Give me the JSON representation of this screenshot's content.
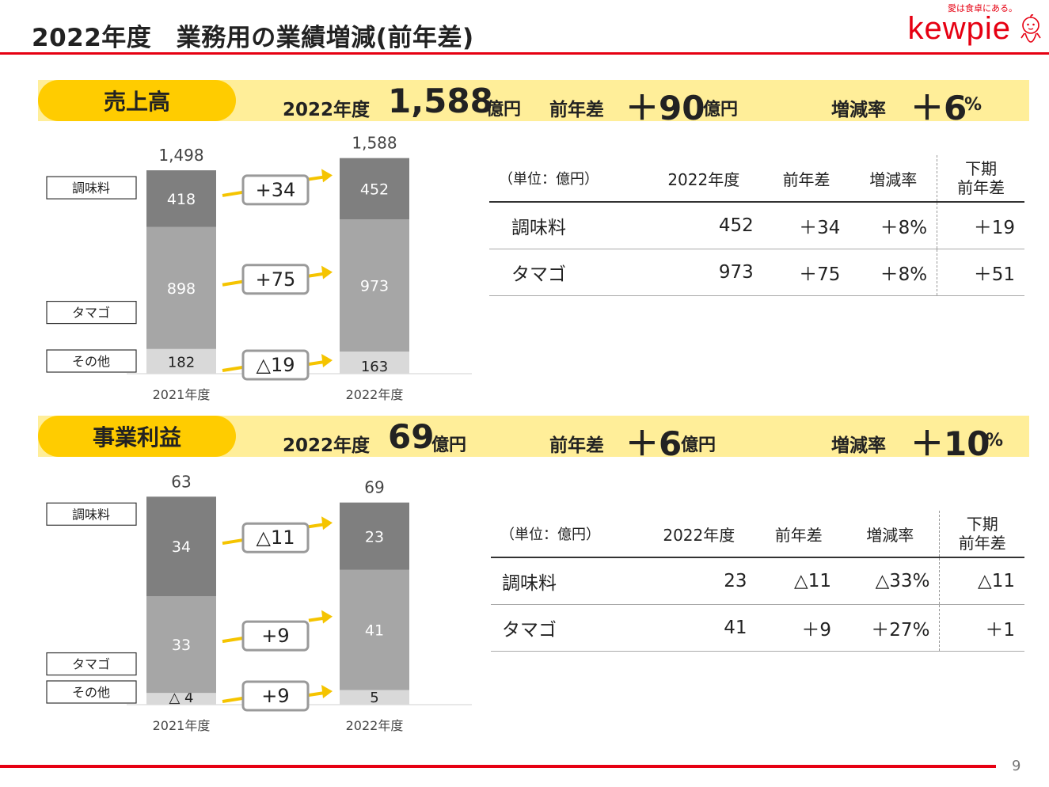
{
  "header": {
    "title": "2022年度　業務用の業績増減(前年差)",
    "logo_tagline": "愛は食卓にある。",
    "logo_text": "kewpie"
  },
  "colors": {
    "accent_red": "#e60012",
    "pill_yellow": "#ffcc00",
    "banner_yellow": "#ffee99",
    "arrow_yellow": "#f5c400",
    "bar_dark": "#7f7f7f",
    "bar_mid": "#a6a6a6",
    "bar_light": "#d9d9d9"
  },
  "sales": {
    "pill": "売上高",
    "year_label": "2022年度",
    "value": "1,588",
    "value_unit": "億円",
    "diff_label": "前年差",
    "diff": "＋90",
    "diff_unit": "億円",
    "rate_label": "増減率",
    "rate": "＋6",
    "rate_unit": "%",
    "table": {
      "headers": [
        "（単位：億円）",
        "2022年度",
        "前年差",
        "増減率",
        "下期\n前年差"
      ],
      "rows": [
        [
          "調味料",
          "452",
          "＋34",
          "＋8%",
          "＋19"
        ],
        [
          "タマゴ",
          "973",
          "＋75",
          "＋8%",
          "＋51"
        ]
      ]
    }
  },
  "profit": {
    "pill": "事業利益",
    "year_label": "2022年度",
    "value": "69",
    "value_unit": "億円",
    "diff_label": "前年差",
    "diff": "＋6",
    "diff_unit": "億円",
    "rate_label": "増減率",
    "rate": "＋10",
    "rate_unit": "%",
    "table": {
      "headers": [
        "（単位：億円）",
        "2022年度",
        "前年差",
        "増減率",
        "下期\n前年差"
      ],
      "rows": [
        [
          "調味料",
          "23",
          "△11",
          "△33%",
          "△11"
        ],
        [
          "タマゴ",
          "41",
          "＋9",
          "＋27%",
          "＋1"
        ]
      ]
    }
  },
  "chart_data": [
    {
      "type": "bar",
      "stacked": true,
      "categories": [
        "2021年度",
        "2022年度"
      ],
      "totals": [
        1498,
        1588
      ],
      "total_labels": [
        "1,498",
        "1,588"
      ],
      "series": [
        {
          "name": "その他",
          "values": [
            182,
            163
          ],
          "labels": [
            "182",
            "163"
          ]
        },
        {
          "name": "タマゴ",
          "values": [
            898,
            973
          ],
          "labels": [
            "898",
            "973"
          ]
        },
        {
          "name": "調味料",
          "values": [
            418,
            452
          ],
          "labels": [
            "418",
            "452"
          ]
        }
      ],
      "changes": [
        "△19",
        "+75",
        "+34"
      ]
    },
    {
      "type": "bar",
      "stacked": true,
      "categories": [
        "2021年度",
        "2022年度"
      ],
      "totals": [
        63,
        69
      ],
      "total_labels": [
        "63",
        "69"
      ],
      "series": [
        {
          "name": "その他",
          "values": [
            -4,
            5
          ],
          "labels": [
            "△ 4",
            "5"
          ]
        },
        {
          "name": "タマゴ",
          "values": [
            33,
            41
          ],
          "labels": [
            "33",
            "41"
          ]
        },
        {
          "name": "調味料",
          "values": [
            34,
            23
          ],
          "labels": [
            "34",
            "23"
          ]
        }
      ],
      "changes": [
        "+9",
        "+9",
        "△11"
      ]
    }
  ],
  "footer": {
    "page": "9"
  }
}
